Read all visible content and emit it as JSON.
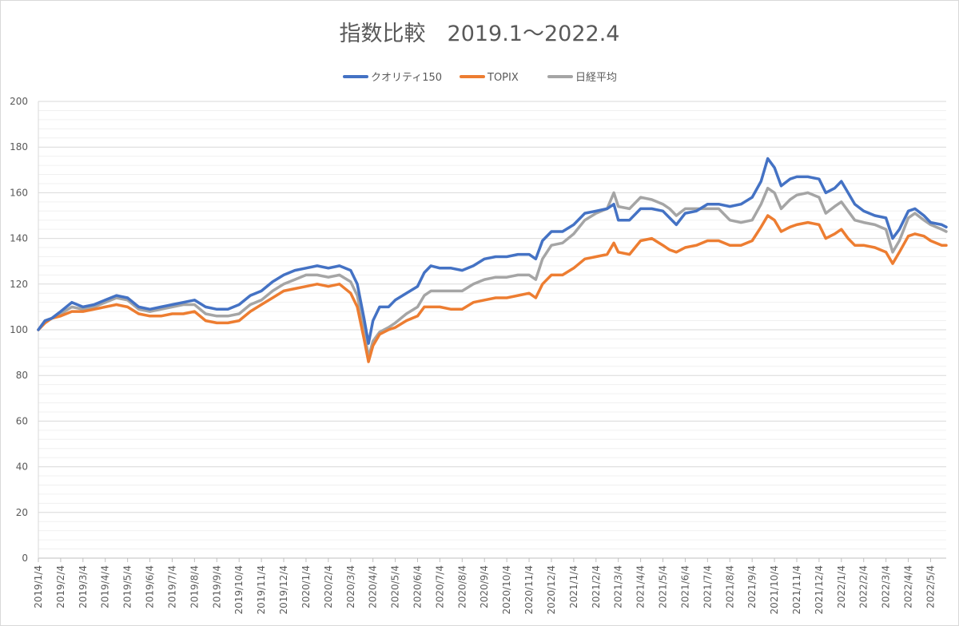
{
  "chart_data": {
    "type": "line",
    "title": "指数比較　2019.1～2022.4",
    "xlabel": "",
    "ylabel": "",
    "ylim": [
      0,
      200
    ],
    "ytick_step": 20,
    "minor_grid_step": 4,
    "grid": true,
    "legend_position": "top-center",
    "x_categories": [
      "2019/1/4",
      "2019/2/4",
      "2019/3/4",
      "2019/4/4",
      "2019/5/4",
      "2019/6/4",
      "2019/7/4",
      "2019/8/4",
      "2019/9/4",
      "2019/10/4",
      "2019/11/4",
      "2019/12/4",
      "2020/1/4",
      "2020/2/4",
      "2020/3/4",
      "2020/4/4",
      "2020/5/4",
      "2020/6/4",
      "2020/7/4",
      "2020/8/4",
      "2020/9/4",
      "2020/10/4",
      "2020/11/4",
      "2020/12/4",
      "2021/1/4",
      "2021/2/4",
      "2021/3/4",
      "2021/4/4",
      "2021/5/4",
      "2021/6/4",
      "2021/7/4",
      "2021/8/4",
      "2021/9/4",
      "2021/10/4",
      "2021/11/4",
      "2021/12/4",
      "2022/1/4",
      "2022/2/4",
      "2022/3/4",
      "2022/4/4",
      "2022/5/4"
    ],
    "x_span": [
      0,
      40.7
    ],
    "series": [
      {
        "name": "クオリティ150",
        "color": "#4472C4",
        "points": [
          [
            0,
            100
          ],
          [
            0.3,
            104
          ],
          [
            0.6,
            105
          ],
          [
            1,
            108
          ],
          [
            1.5,
            112
          ],
          [
            2,
            110
          ],
          [
            2.5,
            111
          ],
          [
            3,
            113
          ],
          [
            3.5,
            115
          ],
          [
            4,
            114
          ],
          [
            4.5,
            110
          ],
          [
            5,
            109
          ],
          [
            5.5,
            110
          ],
          [
            6,
            111
          ],
          [
            6.5,
            112
          ],
          [
            7,
            113
          ],
          [
            7.5,
            110
          ],
          [
            8,
            109
          ],
          [
            8.5,
            109
          ],
          [
            9,
            111
          ],
          [
            9.5,
            115
          ],
          [
            10,
            117
          ],
          [
            10.5,
            121
          ],
          [
            11,
            124
          ],
          [
            11.5,
            126
          ],
          [
            12,
            127
          ],
          [
            12.5,
            128
          ],
          [
            13,
            127
          ],
          [
            13.5,
            128
          ],
          [
            14,
            126
          ],
          [
            14.3,
            120
          ],
          [
            14.6,
            105
          ],
          [
            14.8,
            94
          ],
          [
            15,
            104
          ],
          [
            15.3,
            110
          ],
          [
            15.7,
            110
          ],
          [
            16,
            113
          ],
          [
            16.5,
            116
          ],
          [
            17,
            119
          ],
          [
            17.3,
            125
          ],
          [
            17.6,
            128
          ],
          [
            18,
            127
          ],
          [
            18.5,
            127
          ],
          [
            19,
            126
          ],
          [
            19.5,
            128
          ],
          [
            20,
            131
          ],
          [
            20.5,
            132
          ],
          [
            21,
            132
          ],
          [
            21.5,
            133
          ],
          [
            22,
            133
          ],
          [
            22.3,
            131
          ],
          [
            22.6,
            139
          ],
          [
            23,
            143
          ],
          [
            23.5,
            143
          ],
          [
            24,
            146
          ],
          [
            24.5,
            151
          ],
          [
            25,
            152
          ],
          [
            25.5,
            153
          ],
          [
            25.8,
            155
          ],
          [
            26,
            148
          ],
          [
            26.5,
            148
          ],
          [
            27,
            153
          ],
          [
            27.5,
            153
          ],
          [
            28,
            152
          ],
          [
            28.3,
            149
          ],
          [
            28.6,
            146
          ],
          [
            29,
            151
          ],
          [
            29.5,
            152
          ],
          [
            30,
            155
          ],
          [
            30.5,
            155
          ],
          [
            31,
            154
          ],
          [
            31.5,
            155
          ],
          [
            32,
            158
          ],
          [
            32.4,
            165
          ],
          [
            32.7,
            175
          ],
          [
            33,
            171
          ],
          [
            33.3,
            163
          ],
          [
            33.7,
            166
          ],
          [
            34,
            167
          ],
          [
            34.5,
            167
          ],
          [
            35,
            166
          ],
          [
            35.3,
            160
          ],
          [
            35.7,
            162
          ],
          [
            36,
            165
          ],
          [
            36.3,
            160
          ],
          [
            36.6,
            155
          ],
          [
            37,
            152
          ],
          [
            37.5,
            150
          ],
          [
            38,
            149
          ],
          [
            38.3,
            140
          ],
          [
            38.6,
            144
          ],
          [
            39,
            152
          ],
          [
            39.3,
            153
          ],
          [
            39.7,
            150
          ],
          [
            40,
            147
          ],
          [
            40.5,
            146
          ],
          [
            40.7,
            145
          ]
        ]
      },
      {
        "name": "TOPIX",
        "color": "#ED7D31",
        "points": [
          [
            0,
            100
          ],
          [
            0.3,
            103
          ],
          [
            0.6,
            105
          ],
          [
            1,
            106
          ],
          [
            1.5,
            108
          ],
          [
            2,
            108
          ],
          [
            2.5,
            109
          ],
          [
            3,
            110
          ],
          [
            3.5,
            111
          ],
          [
            4,
            110
          ],
          [
            4.5,
            107
          ],
          [
            5,
            106
          ],
          [
            5.5,
            106
          ],
          [
            6,
            107
          ],
          [
            6.5,
            107
          ],
          [
            7,
            108
          ],
          [
            7.5,
            104
          ],
          [
            8,
            103
          ],
          [
            8.5,
            103
          ],
          [
            9,
            104
          ],
          [
            9.5,
            108
          ],
          [
            10,
            111
          ],
          [
            10.5,
            114
          ],
          [
            11,
            117
          ],
          [
            11.5,
            118
          ],
          [
            12,
            119
          ],
          [
            12.5,
            120
          ],
          [
            13,
            119
          ],
          [
            13.5,
            120
          ],
          [
            14,
            116
          ],
          [
            14.3,
            110
          ],
          [
            14.6,
            96
          ],
          [
            14.8,
            86
          ],
          [
            15,
            93
          ],
          [
            15.3,
            98
          ],
          [
            15.7,
            100
          ],
          [
            16,
            101
          ],
          [
            16.5,
            104
          ],
          [
            17,
            106
          ],
          [
            17.3,
            110
          ],
          [
            17.6,
            110
          ],
          [
            18,
            110
          ],
          [
            18.5,
            109
          ],
          [
            19,
            109
          ],
          [
            19.5,
            112
          ],
          [
            20,
            113
          ],
          [
            20.5,
            114
          ],
          [
            21,
            114
          ],
          [
            21.5,
            115
          ],
          [
            22,
            116
          ],
          [
            22.3,
            114
          ],
          [
            22.6,
            120
          ],
          [
            23,
            124
          ],
          [
            23.5,
            124
          ],
          [
            24,
            127
          ],
          [
            24.5,
            131
          ],
          [
            25,
            132
          ],
          [
            25.5,
            133
          ],
          [
            25.8,
            138
          ],
          [
            26,
            134
          ],
          [
            26.5,
            133
          ],
          [
            27,
            139
          ],
          [
            27.5,
            140
          ],
          [
            28,
            137
          ],
          [
            28.3,
            135
          ],
          [
            28.6,
            134
          ],
          [
            29,
            136
          ],
          [
            29.5,
            137
          ],
          [
            30,
            139
          ],
          [
            30.5,
            139
          ],
          [
            31,
            137
          ],
          [
            31.5,
            137
          ],
          [
            32,
            139
          ],
          [
            32.4,
            145
          ],
          [
            32.7,
            150
          ],
          [
            33,
            148
          ],
          [
            33.3,
            143
          ],
          [
            33.7,
            145
          ],
          [
            34,
            146
          ],
          [
            34.5,
            147
          ],
          [
            35,
            146
          ],
          [
            35.3,
            140
          ],
          [
            35.7,
            142
          ],
          [
            36,
            144
          ],
          [
            36.3,
            140
          ],
          [
            36.6,
            137
          ],
          [
            37,
            137
          ],
          [
            37.5,
            136
          ],
          [
            38,
            134
          ],
          [
            38.3,
            129
          ],
          [
            38.6,
            134
          ],
          [
            39,
            141
          ],
          [
            39.3,
            142
          ],
          [
            39.7,
            141
          ],
          [
            40,
            139
          ],
          [
            40.5,
            137
          ],
          [
            40.7,
            137
          ]
        ]
      },
      {
        "name": "日経平均",
        "color": "#A5A5A5",
        "points": [
          [
            0,
            100
          ],
          [
            0.3,
            104
          ],
          [
            0.6,
            105
          ],
          [
            1,
            107
          ],
          [
            1.5,
            110
          ],
          [
            2,
            109
          ],
          [
            2.5,
            110
          ],
          [
            3,
            112
          ],
          [
            3.5,
            114
          ],
          [
            4,
            113
          ],
          [
            4.5,
            109
          ],
          [
            5,
            108
          ],
          [
            5.5,
            109
          ],
          [
            6,
            110
          ],
          [
            6.5,
            111
          ],
          [
            7,
            111
          ],
          [
            7.5,
            107
          ],
          [
            8,
            106
          ],
          [
            8.5,
            106
          ],
          [
            9,
            107
          ],
          [
            9.5,
            111
          ],
          [
            10,
            113
          ],
          [
            10.5,
            117
          ],
          [
            11,
            120
          ],
          [
            11.5,
            122
          ],
          [
            12,
            124
          ],
          [
            12.5,
            124
          ],
          [
            13,
            123
          ],
          [
            13.5,
            124
          ],
          [
            14,
            121
          ],
          [
            14.3,
            115
          ],
          [
            14.6,
            100
          ],
          [
            14.8,
            88
          ],
          [
            15,
            95
          ],
          [
            15.3,
            99
          ],
          [
            15.7,
            101
          ],
          [
            16,
            103
          ],
          [
            16.5,
            107
          ],
          [
            17,
            110
          ],
          [
            17.3,
            115
          ],
          [
            17.6,
            117
          ],
          [
            18,
            117
          ],
          [
            18.5,
            117
          ],
          [
            19,
            117
          ],
          [
            19.5,
            120
          ],
          [
            20,
            122
          ],
          [
            20.5,
            123
          ],
          [
            21,
            123
          ],
          [
            21.5,
            124
          ],
          [
            22,
            124
          ],
          [
            22.3,
            122
          ],
          [
            22.6,
            131
          ],
          [
            23,
            137
          ],
          [
            23.5,
            138
          ],
          [
            24,
            142
          ],
          [
            24.5,
            148
          ],
          [
            25,
            151
          ],
          [
            25.5,
            153
          ],
          [
            25.8,
            160
          ],
          [
            26,
            154
          ],
          [
            26.5,
            153
          ],
          [
            27,
            158
          ],
          [
            27.5,
            157
          ],
          [
            28,
            155
          ],
          [
            28.3,
            153
          ],
          [
            28.6,
            150
          ],
          [
            29,
            153
          ],
          [
            29.5,
            153
          ],
          [
            30,
            153
          ],
          [
            30.5,
            153
          ],
          [
            31,
            148
          ],
          [
            31.5,
            147
          ],
          [
            32,
            148
          ],
          [
            32.4,
            155
          ],
          [
            32.7,
            162
          ],
          [
            33,
            160
          ],
          [
            33.3,
            153
          ],
          [
            33.7,
            157
          ],
          [
            34,
            159
          ],
          [
            34.5,
            160
          ],
          [
            35,
            158
          ],
          [
            35.3,
            151
          ],
          [
            35.7,
            154
          ],
          [
            36,
            156
          ],
          [
            36.3,
            152
          ],
          [
            36.6,
            148
          ],
          [
            37,
            147
          ],
          [
            37.5,
            146
          ],
          [
            38,
            144
          ],
          [
            38.3,
            134
          ],
          [
            38.6,
            139
          ],
          [
            39,
            149
          ],
          [
            39.3,
            151
          ],
          [
            39.7,
            148
          ],
          [
            40,
            146
          ],
          [
            40.5,
            144
          ],
          [
            40.7,
            143
          ]
        ]
      }
    ]
  }
}
